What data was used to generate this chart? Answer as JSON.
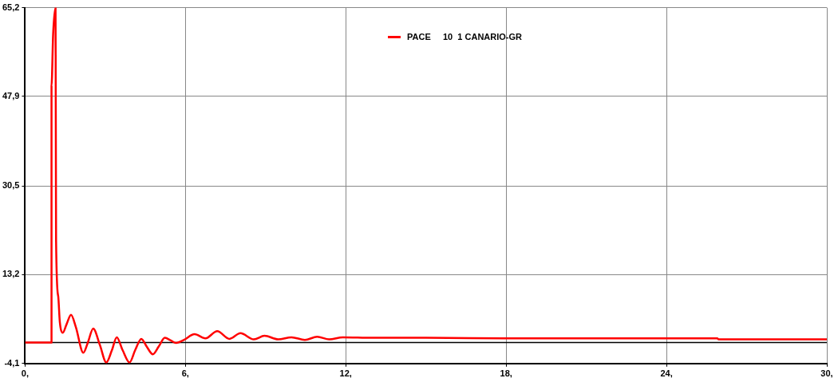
{
  "chart_data": {
    "type": "line",
    "x": [
      0,
      0.99,
      0.99,
      1.05,
      1.14,
      1.16,
      1.24,
      1.3,
      1.41,
      1.55,
      1.72,
      1.9,
      2.18,
      2.35,
      2.55,
      2.8,
      3.04,
      3.25,
      3.43,
      3.65,
      3.91,
      4.12,
      4.35,
      4.55,
      4.78,
      5.0,
      5.23,
      5.45,
      5.65,
      5.95,
      6.34,
      6.75,
      7.19,
      7.65,
      8.06,
      8.56,
      8.96,
      9.47,
      9.97,
      10.47,
      10.93,
      11.38,
      11.89,
      13,
      15,
      18,
      22,
      25.9,
      25.95,
      30
    ],
    "series": [
      {
        "name": "PACE     10  1 CANARIO-GR",
        "color": "#ff0000",
        "values": [
          0,
          0,
          50,
          60,
          65.2,
          20,
          9,
          4,
          1.9,
          3.5,
          5.4,
          3,
          -2.0,
          0,
          2.7,
          -0.5,
          -3.9,
          -1.5,
          1.0,
          -1.5,
          -3.9,
          -1.5,
          0.7,
          -0.8,
          -2.3,
          -0.8,
          0.9,
          0.4,
          -0.1,
          0.5,
          1.6,
          0.8,
          2.2,
          0.7,
          1.8,
          0.6,
          1.3,
          0.6,
          1.0,
          0.5,
          1.1,
          0.6,
          1.0,
          0.9,
          0.9,
          0.8,
          0.8,
          0.8,
          0.6,
          0.6
        ]
      }
    ],
    "xlim": [
      0,
      30
    ],
    "xticks": [
      {
        "value": 0,
        "label": "0,"
      },
      {
        "value": 6,
        "label": "6,"
      },
      {
        "value": 12,
        "label": "12,"
      },
      {
        "value": 18,
        "label": "18,"
      },
      {
        "value": 24,
        "label": "24,"
      },
      {
        "value": 30,
        "label": "30,"
      }
    ],
    "ylim": [
      -4.1,
      65.2
    ],
    "yticks": [
      {
        "value": -4.1,
        "label": "-4,1"
      },
      {
        "value": 13.2,
        "label": "13,2"
      },
      {
        "value": 30.5,
        "label": "30,5"
      },
      {
        "value": 47.9,
        "label": "47,9"
      },
      {
        "value": 65.2,
        "label": "65,2"
      }
    ],
    "ref_lines": [
      {
        "axis": "y",
        "value": 0,
        "color": "#000000"
      }
    ],
    "grid": true,
    "legend": "top",
    "marker": "none",
    "line_style": "solid"
  }
}
